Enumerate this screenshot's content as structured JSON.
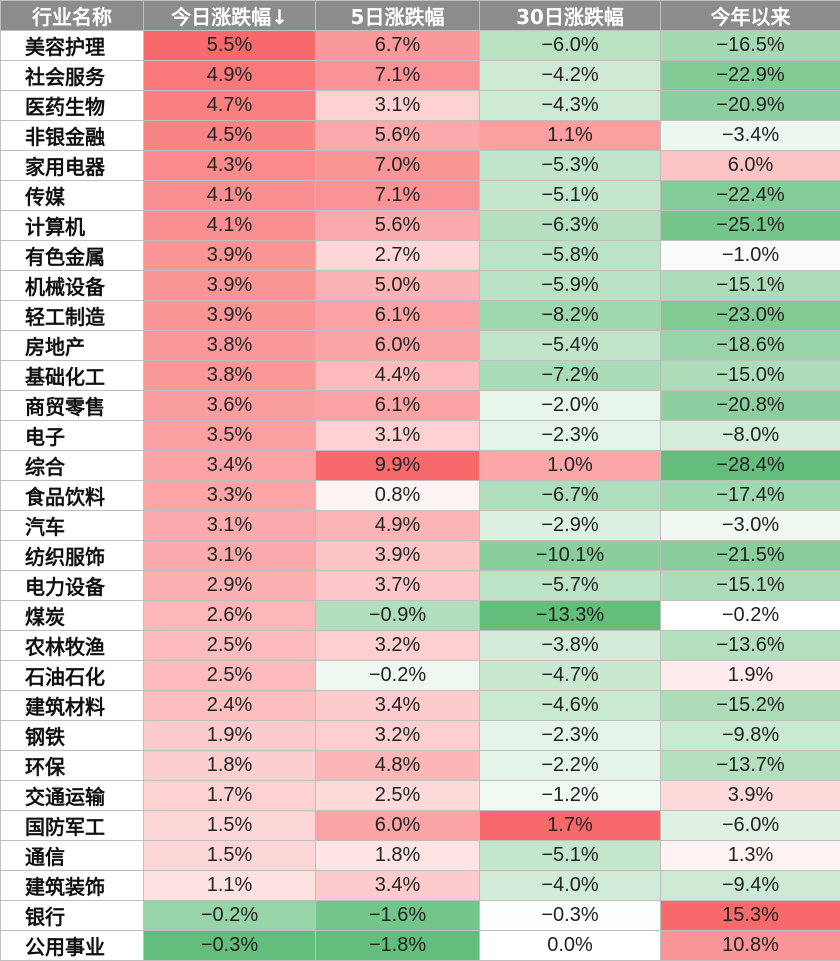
{
  "chart_data": {
    "type": "table",
    "columns": [
      "行业名称",
      "今日涨跌幅↓",
      "5日涨跌幅",
      "30日涨跌幅",
      "今年以来"
    ],
    "rows": [
      {
        "name": "美容护理",
        "values": [
          "5.5%",
          "6.7%",
          "−6.0%",
          "−16.5%"
        ]
      },
      {
        "name": "社会服务",
        "values": [
          "4.9%",
          "7.1%",
          "−4.2%",
          "−22.9%"
        ]
      },
      {
        "name": "医药生物",
        "values": [
          "4.7%",
          "3.1%",
          "−4.3%",
          "−20.9%"
        ]
      },
      {
        "name": "非银金融",
        "values": [
          "4.5%",
          "5.6%",
          "1.1%",
          "−3.4%"
        ]
      },
      {
        "name": "家用电器",
        "values": [
          "4.3%",
          "7.0%",
          "−5.3%",
          "6.0%"
        ]
      },
      {
        "name": "传媒",
        "values": [
          "4.1%",
          "7.1%",
          "−5.1%",
          "−22.4%"
        ]
      },
      {
        "name": "计算机",
        "values": [
          "4.1%",
          "5.6%",
          "−6.3%",
          "−25.1%"
        ]
      },
      {
        "name": "有色金属",
        "values": [
          "3.9%",
          "2.7%",
          "−5.8%",
          "−1.0%"
        ]
      },
      {
        "name": "机械设备",
        "values": [
          "3.9%",
          "5.0%",
          "−5.9%",
          "−15.1%"
        ]
      },
      {
        "name": "轻工制造",
        "values": [
          "3.9%",
          "6.1%",
          "−8.2%",
          "−23.0%"
        ]
      },
      {
        "name": "房地产",
        "values": [
          "3.8%",
          "6.0%",
          "−5.4%",
          "−18.6%"
        ]
      },
      {
        "name": "基础化工",
        "values": [
          "3.8%",
          "4.4%",
          "−7.2%",
          "−15.0%"
        ]
      },
      {
        "name": "商贸零售",
        "values": [
          "3.6%",
          "6.1%",
          "−2.0%",
          "−20.8%"
        ]
      },
      {
        "name": "电子",
        "values": [
          "3.5%",
          "3.1%",
          "−2.3%",
          "−8.0%"
        ]
      },
      {
        "name": "综合",
        "values": [
          "3.4%",
          "9.9%",
          "1.0%",
          "−28.4%"
        ]
      },
      {
        "name": "食品饮料",
        "values": [
          "3.3%",
          "0.8%",
          "−6.7%",
          "−17.4%"
        ]
      },
      {
        "name": "汽车",
        "values": [
          "3.1%",
          "4.9%",
          "−2.9%",
          "−3.0%"
        ]
      },
      {
        "name": "纺织服饰",
        "values": [
          "3.1%",
          "3.9%",
          "−10.1%",
          "−21.5%"
        ]
      },
      {
        "name": "电力设备",
        "values": [
          "2.9%",
          "3.7%",
          "−5.7%",
          "−15.1%"
        ]
      },
      {
        "name": "煤炭",
        "values": [
          "2.6%",
          "−0.9%",
          "−13.3%",
          "−0.2%"
        ]
      },
      {
        "name": "农林牧渔",
        "values": [
          "2.5%",
          "3.2%",
          "−3.8%",
          "−13.6%"
        ]
      },
      {
        "name": "石油石化",
        "values": [
          "2.5%",
          "−0.2%",
          "−4.7%",
          "1.9%"
        ]
      },
      {
        "name": "建筑材料",
        "values": [
          "2.4%",
          "3.4%",
          "−4.6%",
          "−15.2%"
        ]
      },
      {
        "name": "钢铁",
        "values": [
          "1.9%",
          "3.2%",
          "−2.3%",
          "−9.8%"
        ]
      },
      {
        "name": "环保",
        "values": [
          "1.8%",
          "4.8%",
          "−2.2%",
          "−13.7%"
        ]
      },
      {
        "name": "交通运输",
        "values": [
          "1.7%",
          "2.5%",
          "−1.2%",
          "3.9%"
        ]
      },
      {
        "name": "国防军工",
        "values": [
          "1.5%",
          "6.0%",
          "1.7%",
          "−6.0%"
        ]
      },
      {
        "name": "通信",
        "values": [
          "1.5%",
          "1.8%",
          "−5.1%",
          "1.3%"
        ]
      },
      {
        "name": "建筑装饰",
        "values": [
          "1.1%",
          "3.4%",
          "−4.0%",
          "−9.4%"
        ]
      },
      {
        "name": "银行",
        "values": [
          "−0.2%",
          "−1.6%",
          "−0.3%",
          "15.3%"
        ]
      },
      {
        "name": "公用事业",
        "values": [
          "−0.3%",
          "−1.8%",
          "0.0%",
          "10.8%"
        ]
      }
    ]
  },
  "colors": {
    "header_bg": "#8c8c8c",
    "header_text": "#ffffff",
    "positive_max": "#f8696b",
    "negative_max": "#63be7b",
    "neutral": "#ffffff",
    "grid": "#bfbfbf"
  }
}
